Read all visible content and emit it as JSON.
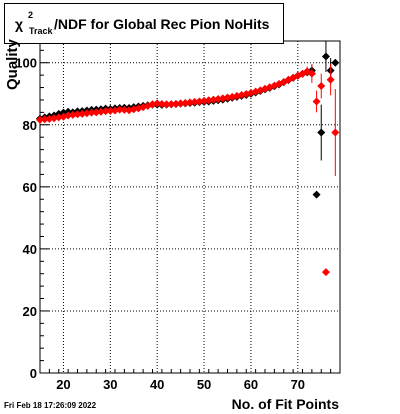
{
  "chart_data": {
    "type": "scatter",
    "title_chi": "χ",
    "title_sup": "2",
    "title_sub": "Track",
    "title_main": "/NDF for Global Rec Pion NoHits",
    "xlabel": "No. of Fit Points",
    "ylabel": "Quality",
    "timestamp": "Fri Feb 18 17:26:09 2022",
    "xlim": [
      15,
      79
    ],
    "ylim": [
      0,
      107
    ],
    "x_ticks": [
      20,
      30,
      40,
      50,
      60,
      70
    ],
    "y_ticks": [
      0,
      20,
      40,
      60,
      80,
      100
    ],
    "grid": true,
    "colors": {
      "series_black": "#000000",
      "series_red": "#ff0000"
    },
    "series": [
      {
        "color": "#000000",
        "points": [
          {
            "x": 15,
            "y": 82.0
          },
          {
            "x": 16,
            "y": 82.4
          },
          {
            "x": 17,
            "y": 82.7
          },
          {
            "x": 18,
            "y": 83.0
          },
          {
            "x": 19,
            "y": 83.5
          },
          {
            "x": 20,
            "y": 83.9
          },
          {
            "x": 21,
            "y": 84.2
          },
          {
            "x": 22,
            "y": 84.0
          },
          {
            "x": 23,
            "y": 84.3
          },
          {
            "x": 24,
            "y": 84.4
          },
          {
            "x": 25,
            "y": 84.6
          },
          {
            "x": 26,
            "y": 84.8
          },
          {
            "x": 27,
            "y": 84.9
          },
          {
            "x": 28,
            "y": 85.0
          },
          {
            "x": 29,
            "y": 85.2
          },
          {
            "x": 30,
            "y": 85.1
          },
          {
            "x": 31,
            "y": 85.3
          },
          {
            "x": 32,
            "y": 85.4
          },
          {
            "x": 33,
            "y": 85.5
          },
          {
            "x": 34,
            "y": 85.4
          },
          {
            "x": 35,
            "y": 85.7
          },
          {
            "x": 36,
            "y": 85.9
          },
          {
            "x": 37,
            "y": 86.1
          },
          {
            "x": 38,
            "y": 86.3
          },
          {
            "x": 39,
            "y": 86.5
          },
          {
            "x": 40,
            "y": 86.5
          },
          {
            "x": 41,
            "y": 86.4
          },
          {
            "x": 42,
            "y": 86.5
          },
          {
            "x": 43,
            "y": 86.6
          },
          {
            "x": 44,
            "y": 86.7
          },
          {
            "x": 45,
            "y": 86.8
          },
          {
            "x": 46,
            "y": 86.9
          },
          {
            "x": 47,
            "y": 87.0
          },
          {
            "x": 48,
            "y": 87.1
          },
          {
            "x": 49,
            "y": 87.3
          },
          {
            "x": 50,
            "y": 87.4
          },
          {
            "x": 51,
            "y": 87.5
          },
          {
            "x": 52,
            "y": 87.7
          },
          {
            "x": 53,
            "y": 87.9
          },
          {
            "x": 54,
            "y": 88.1
          },
          {
            "x": 55,
            "y": 88.4
          },
          {
            "x": 56,
            "y": 88.7
          },
          {
            "x": 57,
            "y": 89.0
          },
          {
            "x": 58,
            "y": 89.3
          },
          {
            "x": 59,
            "y": 89.6
          },
          {
            "x": 60,
            "y": 90.0
          },
          {
            "x": 61,
            "y": 90.4
          },
          {
            "x": 62,
            "y": 90.9
          },
          {
            "x": 63,
            "y": 91.4
          },
          {
            "x": 64,
            "y": 91.9
          },
          {
            "x": 65,
            "y": 92.4
          },
          {
            "x": 66,
            "y": 93.0
          },
          {
            "x": 67,
            "y": 93.7
          },
          {
            "x": 68,
            "y": 94.4
          },
          {
            "x": 69,
            "y": 95.1
          },
          {
            "x": 70,
            "y": 95.8
          },
          {
            "x": 71,
            "y": 96.4
          },
          {
            "x": 72,
            "y": 96.9
          },
          {
            "x": 73,
            "y": 97.5,
            "err": 2.0
          },
          {
            "x": 74,
            "y": 57.5,
            "err": 0
          },
          {
            "x": 75,
            "y": 77.5,
            "err": 9.0
          },
          {
            "x": 76,
            "y": 102.0,
            "err": 5.0
          },
          {
            "x": 77,
            "y": 97.5,
            "err": 4.0
          },
          {
            "x": 78,
            "y": 100.0,
            "err": 0
          }
        ]
      },
      {
        "color": "#ff0000",
        "points": [
          {
            "x": 15,
            "y": 81.6
          },
          {
            "x": 16,
            "y": 81.8
          },
          {
            "x": 17,
            "y": 81.9
          },
          {
            "x": 18,
            "y": 82.1
          },
          {
            "x": 19,
            "y": 82.4
          },
          {
            "x": 20,
            "y": 82.6
          },
          {
            "x": 21,
            "y": 83.0
          },
          {
            "x": 22,
            "y": 83.2
          },
          {
            "x": 23,
            "y": 83.4
          },
          {
            "x": 24,
            "y": 83.5
          },
          {
            "x": 25,
            "y": 83.7
          },
          {
            "x": 26,
            "y": 83.9
          },
          {
            "x": 27,
            "y": 84.0
          },
          {
            "x": 28,
            "y": 84.2
          },
          {
            "x": 29,
            "y": 84.4
          },
          {
            "x": 30,
            "y": 84.5
          },
          {
            "x": 31,
            "y": 84.6
          },
          {
            "x": 32,
            "y": 84.9
          },
          {
            "x": 33,
            "y": 84.8
          },
          {
            "x": 34,
            "y": 84.7
          },
          {
            "x": 35,
            "y": 85.0
          },
          {
            "x": 36,
            "y": 85.3
          },
          {
            "x": 37,
            "y": 85.7
          },
          {
            "x": 38,
            "y": 86.1
          },
          {
            "x": 39,
            "y": 86.6
          },
          {
            "x": 40,
            "y": 86.9
          },
          {
            "x": 41,
            "y": 86.7
          },
          {
            "x": 42,
            "y": 86.6
          },
          {
            "x": 43,
            "y": 86.6
          },
          {
            "x": 44,
            "y": 86.7
          },
          {
            "x": 45,
            "y": 86.9
          },
          {
            "x": 46,
            "y": 87.0
          },
          {
            "x": 47,
            "y": 87.2
          },
          {
            "x": 48,
            "y": 87.4
          },
          {
            "x": 49,
            "y": 87.5
          },
          {
            "x": 50,
            "y": 87.7
          },
          {
            "x": 51,
            "y": 87.9
          },
          {
            "x": 52,
            "y": 88.1
          },
          {
            "x": 53,
            "y": 88.3
          },
          {
            "x": 54,
            "y": 88.5
          },
          {
            "x": 55,
            "y": 88.8
          },
          {
            "x": 56,
            "y": 89.0
          },
          {
            "x": 57,
            "y": 89.3
          },
          {
            "x": 58,
            "y": 89.6
          },
          {
            "x": 59,
            "y": 89.9
          },
          {
            "x": 60,
            "y": 90.3
          },
          {
            "x": 61,
            "y": 90.7
          },
          {
            "x": 62,
            "y": 91.1
          },
          {
            "x": 63,
            "y": 91.6
          },
          {
            "x": 64,
            "y": 92.1
          },
          {
            "x": 65,
            "y": 92.6
          },
          {
            "x": 66,
            "y": 93.2
          },
          {
            "x": 67,
            "y": 93.8
          },
          {
            "x": 68,
            "y": 94.5
          },
          {
            "x": 69,
            "y": 95.2
          },
          {
            "x": 70,
            "y": 95.8
          },
          {
            "x": 71,
            "y": 96.4
          },
          {
            "x": 72,
            "y": 97.2,
            "err": 1.5
          },
          {
            "x": 73,
            "y": 96.5,
            "err": 3.0
          },
          {
            "x": 74,
            "y": 87.5,
            "err": 3.5
          },
          {
            "x": 75,
            "y": 92.5,
            "err": 4.0
          },
          {
            "x": 76,
            "y": 32.5,
            "err": 0
          },
          {
            "x": 77,
            "y": 94.5,
            "err": 5.0
          },
          {
            "x": 78,
            "y": 77.5,
            "err": 14.0
          }
        ]
      }
    ]
  }
}
